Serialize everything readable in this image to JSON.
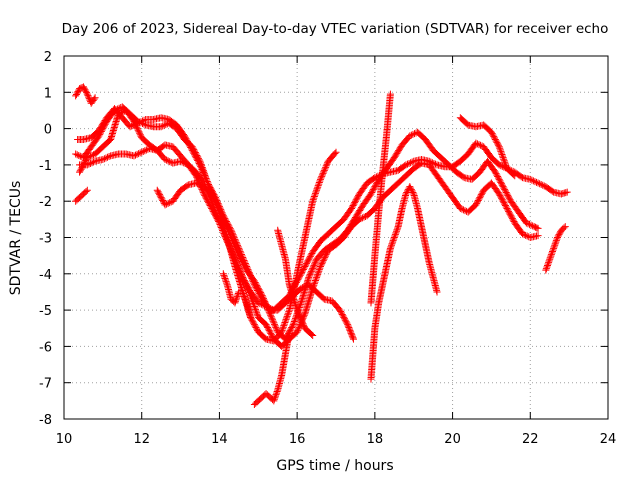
{
  "chart_data": {
    "type": "scatter",
    "title": "Day 206 of 2023, Sidereal Day-to-day VTEC variation (SDTVAR) for receiver echo",
    "xlabel": "GPS time / hours",
    "ylabel": "SDTVAR / TECUs",
    "xlim": [
      10,
      24
    ],
    "ylim": [
      -8,
      2
    ],
    "xticks": [
      "10",
      "12",
      "14",
      "16",
      "18",
      "20",
      "22",
      "24"
    ],
    "yticks": [
      "2",
      "1",
      "0",
      "-1",
      "-2",
      "-3",
      "-4",
      "-5",
      "-6",
      "-7",
      "-8"
    ],
    "grid": true,
    "marker": "+",
    "marker_color": "#ff0000",
    "series": [
      {
        "x": [
          10.35,
          10.5,
          10.7,
          10.9,
          11.1,
          11.3,
          11.5,
          11.7,
          11.9,
          12.1,
          12.3,
          12.5,
          12.7,
          12.9,
          13.1,
          13.3,
          13.5,
          13.7,
          13.9,
          14.1,
          14.3,
          14.5,
          14.7,
          14.9,
          15.1,
          15.3,
          15.5,
          15.7,
          15.9,
          16.1,
          16.3,
          16.5,
          16.7,
          16.9,
          17.1,
          17.3,
          17.45
        ],
        "y": [
          -0.3,
          -0.3,
          -0.25,
          -0.05,
          0.3,
          0.55,
          0.3,
          0.05,
          0.15,
          0.25,
          0.25,
          0.3,
          0.25,
          0.1,
          -0.2,
          -0.6,
          -1.0,
          -1.5,
          -1.9,
          -2.4,
          -2.8,
          -3.3,
          -3.8,
          -4.3,
          -4.7,
          -5.0,
          -5.0,
          -4.8,
          -4.6,
          -4.4,
          -4.3,
          -4.5,
          -4.7,
          -4.75,
          -5.0,
          -5.4,
          -5.8
        ]
      },
      {
        "x": [
          10.4,
          10.6,
          10.8,
          11.0,
          11.2,
          11.4,
          11.6,
          11.8,
          12.0,
          12.2,
          12.4,
          12.6,
          12.8,
          13.0,
          13.2,
          13.4,
          13.6,
          13.8,
          14.0,
          14.2,
          14.4,
          14.6,
          14.8,
          15.0,
          15.2,
          15.4,
          15.6,
          15.8,
          16.0,
          16.2,
          16.4,
          16.6,
          16.8,
          17.0,
          17.2,
          17.4,
          17.6,
          17.8,
          18.0,
          18.2,
          18.4,
          18.6,
          18.8,
          19.0,
          19.2,
          19.4,
          19.6,
          19.8,
          20.0,
          20.2,
          20.4,
          20.6,
          20.8,
          21.0,
          21.2,
          21.4,
          21.6,
          21.8,
          22.0,
          22.2,
          22.4,
          22.6,
          22.8,
          22.95
        ],
        "y": [
          -1.0,
          -1.0,
          -0.9,
          -0.85,
          -0.75,
          -0.7,
          -0.7,
          -0.75,
          -0.65,
          -0.55,
          -0.6,
          -0.85,
          -0.95,
          -0.9,
          -1.0,
          -1.2,
          -1.5,
          -2.0,
          -2.6,
          -3.1,
          -3.6,
          -4.1,
          -4.5,
          -4.8,
          -4.9,
          -5.0,
          -4.8,
          -4.6,
          -4.2,
          -3.8,
          -3.4,
          -3.1,
          -2.9,
          -2.7,
          -2.5,
          -2.2,
          -1.8,
          -1.5,
          -1.35,
          -1.25,
          -1.2,
          -1.15,
          -1.0,
          -0.9,
          -0.85,
          -0.9,
          -1.0,
          -1.05,
          -1.05,
          -0.9,
          -0.7,
          -0.4,
          -0.5,
          -0.8,
          -1.0,
          -1.1,
          -1.2,
          -1.35,
          -1.4,
          -1.5,
          -1.6,
          -1.75,
          -1.8,
          -1.75
        ]
      },
      {
        "x": [
          10.3,
          10.5,
          10.7,
          10.9,
          11.1,
          11.3,
          11.5,
          11.7,
          11.9,
          12.1,
          12.3,
          12.5,
          12.7,
          12.9,
          13.1,
          13.3,
          13.5,
          13.7,
          13.9,
          14.1,
          14.3,
          14.5,
          14.7,
          14.9,
          15.1,
          15.3,
          15.5,
          15.7,
          15.9,
          16.1,
          16.3,
          16.5,
          16.7,
          16.9,
          17.1,
          17.3,
          17.5,
          17.7,
          17.9,
          18.1,
          18.3,
          18.5,
          18.7,
          18.9,
          19.1,
          19.3,
          19.5,
          19.7,
          19.9,
          20.1,
          20.3,
          20.5,
          20.7,
          20.9,
          21.1,
          21.3,
          21.5,
          21.7,
          21.9,
          22.1,
          22.2
        ],
        "y": [
          -0.7,
          -0.8,
          -0.5,
          -0.2,
          0.2,
          0.5,
          0.6,
          0.4,
          0.2,
          0.1,
          0.05,
          0.05,
          0.15,
          0.0,
          -0.3,
          -0.5,
          -0.9,
          -1.5,
          -2.0,
          -2.5,
          -3.0,
          -3.5,
          -3.9,
          -4.2,
          -4.6,
          -5.1,
          -5.6,
          -5.8,
          -5.4,
          -4.8,
          -4.1,
          -3.6,
          -3.35,
          -3.2,
          -3.05,
          -2.8,
          -2.45,
          -2.1,
          -1.8,
          -1.4,
          -1.1,
          -0.8,
          -0.45,
          -0.2,
          -0.1,
          -0.3,
          -0.6,
          -0.8,
          -1.0,
          -1.2,
          -1.35,
          -1.4,
          -1.2,
          -0.9,
          -1.2,
          -1.6,
          -2.0,
          -2.3,
          -2.6,
          -2.7,
          -2.75
        ]
      },
      {
        "x": [
          10.4,
          10.6,
          10.8,
          11.0,
          11.2,
          11.4,
          11.6,
          11.8,
          12.0,
          12.2,
          12.4,
          12.6,
          12.8,
          13.0,
          13.2,
          13.4,
          13.6,
          13.8,
          14.0,
          14.2,
          14.4,
          14.6,
          14.8,
          15.0,
          15.2,
          15.4,
          15.6,
          15.8,
          16.0,
          16.2,
          16.4,
          16.6,
          16.8,
          17.0,
          17.2,
          17.4,
          17.6,
          17.8,
          18.0,
          18.2,
          18.4,
          18.6,
          18.8,
          19.0,
          19.2,
          19.4,
          19.6,
          19.8,
          20.0,
          20.2,
          20.4,
          20.6,
          20.8,
          21.0,
          21.2,
          21.4,
          21.6,
          21.8,
          22.0,
          22.2
        ],
        "y": [
          -1.2,
          -0.8,
          -0.7,
          -0.5,
          -0.3,
          0.4,
          0.5,
          0.2,
          -0.25,
          -0.45,
          -0.6,
          -0.45,
          -0.5,
          -0.75,
          -1.0,
          -1.3,
          -1.8,
          -2.2,
          -2.6,
          -3.1,
          -3.6,
          -4.1,
          -4.6,
          -5.2,
          -5.4,
          -5.8,
          -6.0,
          -5.8,
          -5.6,
          -5.1,
          -4.4,
          -3.8,
          -3.35,
          -3.2,
          -3.0,
          -2.7,
          -2.5,
          -2.4,
          -2.2,
          -1.9,
          -1.7,
          -1.5,
          -1.3,
          -1.1,
          -0.95,
          -1.0,
          -1.3,
          -1.6,
          -1.9,
          -2.2,
          -2.3,
          -2.1,
          -1.7,
          -1.5,
          -1.8,
          -2.2,
          -2.6,
          -2.9,
          -3.0,
          -2.95
        ]
      },
      {
        "x": [
          12.4,
          12.6,
          12.8,
          13.0,
          13.2,
          13.4,
          13.6,
          13.8,
          14.0,
          14.2,
          14.4,
          14.6,
          14.8,
          15.0,
          15.2,
          15.4,
          15.6,
          15.8,
          16.0,
          16.2,
          16.4,
          16.6,
          16.8,
          17.0
        ],
        "y": [
          -1.7,
          -2.1,
          -2.0,
          -1.7,
          -1.55,
          -1.5,
          -1.6,
          -1.8,
          -2.3,
          -3.0,
          -3.8,
          -4.5,
          -5.2,
          -5.6,
          -5.8,
          -5.85,
          -5.6,
          -5.0,
          -4.0,
          -3.0,
          -2.0,
          -1.4,
          -0.9,
          -0.65
        ]
      },
      {
        "x": [
          10.3,
          10.4,
          10.5,
          10.6,
          10.7,
          10.8
        ],
        "y": [
          0.9,
          1.1,
          1.15,
          0.95,
          0.7,
          0.85
        ]
      },
      {
        "x": [
          10.3,
          10.4,
          10.5,
          10.6
        ],
        "y": [
          -2.0,
          -1.9,
          -1.8,
          -1.7
        ]
      },
      {
        "x": [
          14.1,
          14.2,
          14.3,
          14.4,
          14.5,
          14.6,
          14.7,
          14.8
        ],
        "y": [
          -4.0,
          -4.3,
          -4.7,
          -4.8,
          -4.5,
          -4.5,
          -4.8,
          -5.2
        ]
      },
      {
        "x": [
          14.9,
          15.0,
          15.1,
          15.2,
          15.3,
          15.4,
          15.5,
          15.6,
          15.7,
          15.8
        ],
        "y": [
          -7.6,
          -7.5,
          -7.4,
          -7.3,
          -7.4,
          -7.5,
          -7.2,
          -6.8,
          -6.2,
          -5.6
        ]
      },
      {
        "x": [
          15.5,
          15.6,
          15.7,
          15.8,
          16.0,
          16.2,
          16.4
        ],
        "y": [
          -2.8,
          -3.2,
          -3.6,
          -4.3,
          -5.0,
          -5.5,
          -5.7
        ]
      },
      {
        "x": [
          17.9,
          18.0,
          18.1,
          18.2,
          18.3,
          18.4,
          18.5,
          18.6,
          18.7,
          18.8,
          18.9,
          19.0,
          19.1,
          19.2,
          19.3,
          19.4,
          19.5,
          19.6
        ],
        "y": [
          -6.9,
          -5.5,
          -4.8,
          -4.3,
          -3.8,
          -3.3,
          -3.0,
          -2.7,
          -2.2,
          -1.8,
          -1.6,
          -1.8,
          -2.2,
          -2.7,
          -3.2,
          -3.7,
          -4.1,
          -4.5
        ]
      },
      {
        "x": [
          17.9,
          18.0,
          18.1,
          18.2,
          18.3,
          18.4
        ],
        "y": [
          -4.8,
          -3.5,
          -2.3,
          -1.2,
          -0.2,
          0.95
        ]
      },
      {
        "x": [
          20.2,
          20.4,
          20.6,
          20.8,
          21.0,
          21.2,
          21.4,
          21.6
        ],
        "y": [
          0.3,
          0.1,
          0.05,
          0.1,
          -0.1,
          -0.5,
          -1.1,
          -1.3
        ]
      },
      {
        "x": [
          22.4,
          22.5,
          22.6,
          22.7,
          22.8,
          22.9
        ],
        "y": [
          -3.9,
          -3.6,
          -3.3,
          -3.0,
          -2.8,
          -2.7
        ]
      }
    ]
  }
}
